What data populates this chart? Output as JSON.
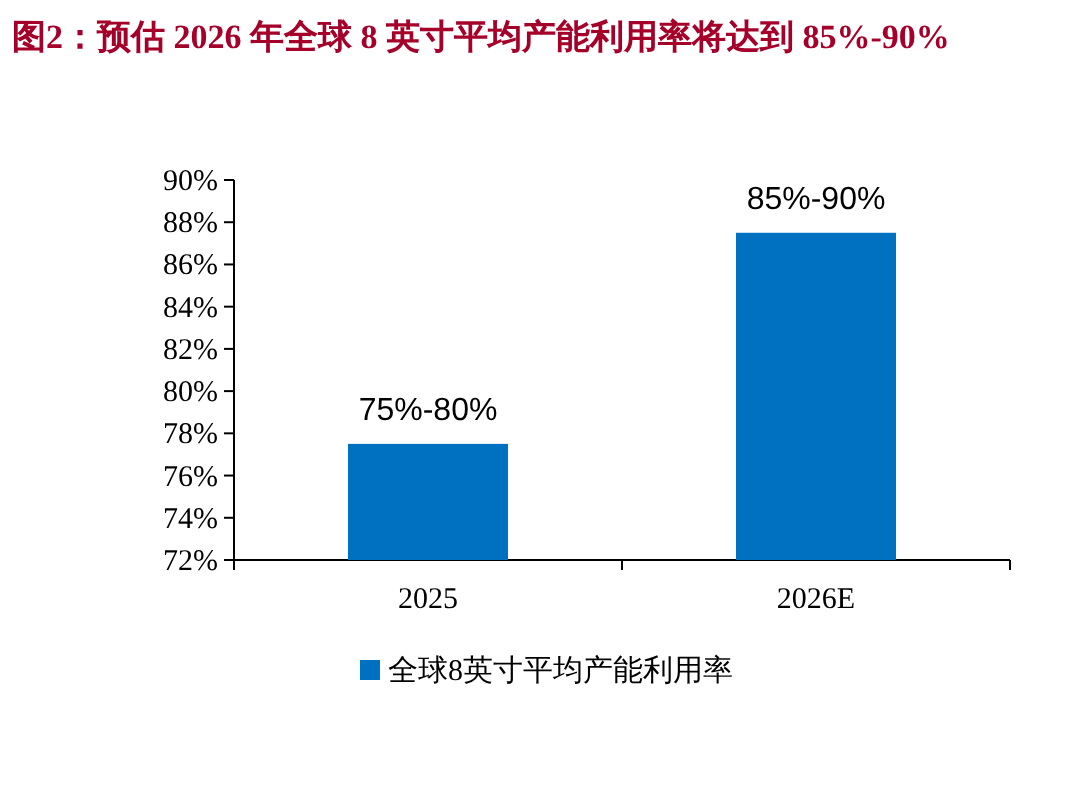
{
  "chart_data": {
    "type": "bar",
    "title": "图2：预估 2026 年全球 8 英寸平均产能利用率将达到 85%-90%",
    "categories": [
      "2025",
      "2026E"
    ],
    "series": [
      {
        "name": "全球8英寸平均产能利用率",
        "color": "#0070c0",
        "values": [
          77.5,
          87.5
        ]
      }
    ],
    "annotations": [
      {
        "text": "75%-80%",
        "x": "2025",
        "y": 77.5
      },
      {
        "text": "85%-90%",
        "x": "2026E",
        "y": 87.5
      }
    ],
    "ylim": [
      72,
      90
    ],
    "yticks": [
      {
        "value": 72,
        "label": "72%"
      },
      {
        "value": 74,
        "label": "74%"
      },
      {
        "value": 76,
        "label": "76%"
      },
      {
        "value": 78,
        "label": "78%"
      },
      {
        "value": 80,
        "label": "80%"
      },
      {
        "value": 82,
        "label": "82%"
      },
      {
        "value": 84,
        "label": "84%"
      },
      {
        "value": 86,
        "label": "86%"
      },
      {
        "value": 88,
        "label": "88%"
      },
      {
        "value": 90,
        "label": "90%"
      }
    ],
    "grid": false,
    "legend": "bottom"
  }
}
